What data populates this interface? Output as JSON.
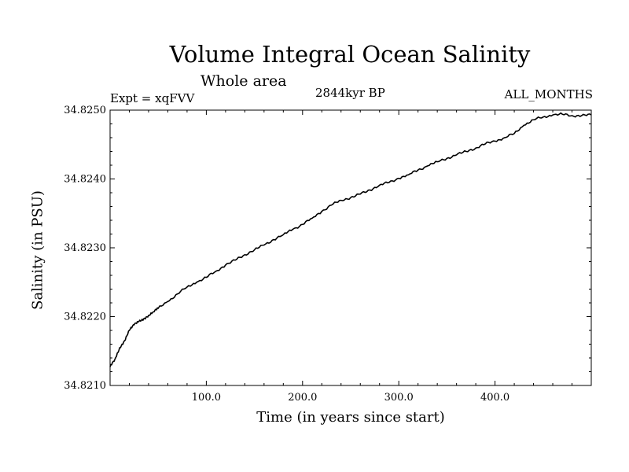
{
  "chart_data": {
    "type": "line",
    "title": "Volume Integral Ocean Salinity",
    "subtitle": "Whole area",
    "left_label": "Expt = xqFVV",
    "center_label": "2844kyr BP",
    "right_label": "ALL_MONTHS",
    "xlabel": "Time (in years since start)",
    "ylabel": "Salinity (in PSU)",
    "xlim": [
      0,
      500
    ],
    "ylim": [
      34.821,
      34.825
    ],
    "x_ticks": [
      100,
      200,
      300,
      400
    ],
    "x_tick_labels": [
      "100.0",
      "200.0",
      "300.0",
      "400.0"
    ],
    "y_ticks": [
      34.821,
      34.822,
      34.823,
      34.824,
      34.825
    ],
    "y_tick_labels": [
      "34.8210",
      "34.8220",
      "34.8230",
      "34.8240",
      "34.8250"
    ],
    "grid": false,
    "series": [
      {
        "name": "salinity",
        "color": "#000000",
        "x": [
          0,
          5,
          10,
          15,
          20,
          25,
          30,
          35,
          40,
          45,
          50,
          60,
          70,
          80,
          90,
          100,
          110,
          120,
          130,
          140,
          150,
          160,
          170,
          180,
          190,
          200,
          210,
          220,
          230,
          240,
          250,
          260,
          270,
          280,
          290,
          300,
          310,
          320,
          330,
          340,
          350,
          360,
          370,
          380,
          390,
          400,
          410,
          420,
          430,
          440,
          450,
          460,
          470,
          480,
          490,
          500
        ],
        "values": [
          34.82127,
          34.82138,
          34.82155,
          34.82165,
          34.8218,
          34.82188,
          34.82193,
          34.82197,
          34.82202,
          34.82207,
          34.82212,
          34.82222,
          34.82233,
          34.82243,
          34.8225,
          34.82257,
          34.82266,
          34.82275,
          34.82282,
          34.8229,
          34.82297,
          34.82304,
          34.82312,
          34.82319,
          34.82327,
          34.82334,
          34.82343,
          34.82353,
          34.82362,
          34.82369,
          34.82373,
          34.82378,
          34.82384,
          34.82391,
          34.82395,
          34.82401,
          34.82406,
          34.82413,
          34.82419,
          34.82425,
          34.8243,
          34.82435,
          34.8244,
          34.82445,
          34.82451,
          34.82455,
          34.8246,
          34.82466,
          34.82478,
          34.82486,
          34.8249,
          34.82493,
          34.82494,
          34.82492,
          34.82492,
          34.82493
        ]
      }
    ]
  }
}
